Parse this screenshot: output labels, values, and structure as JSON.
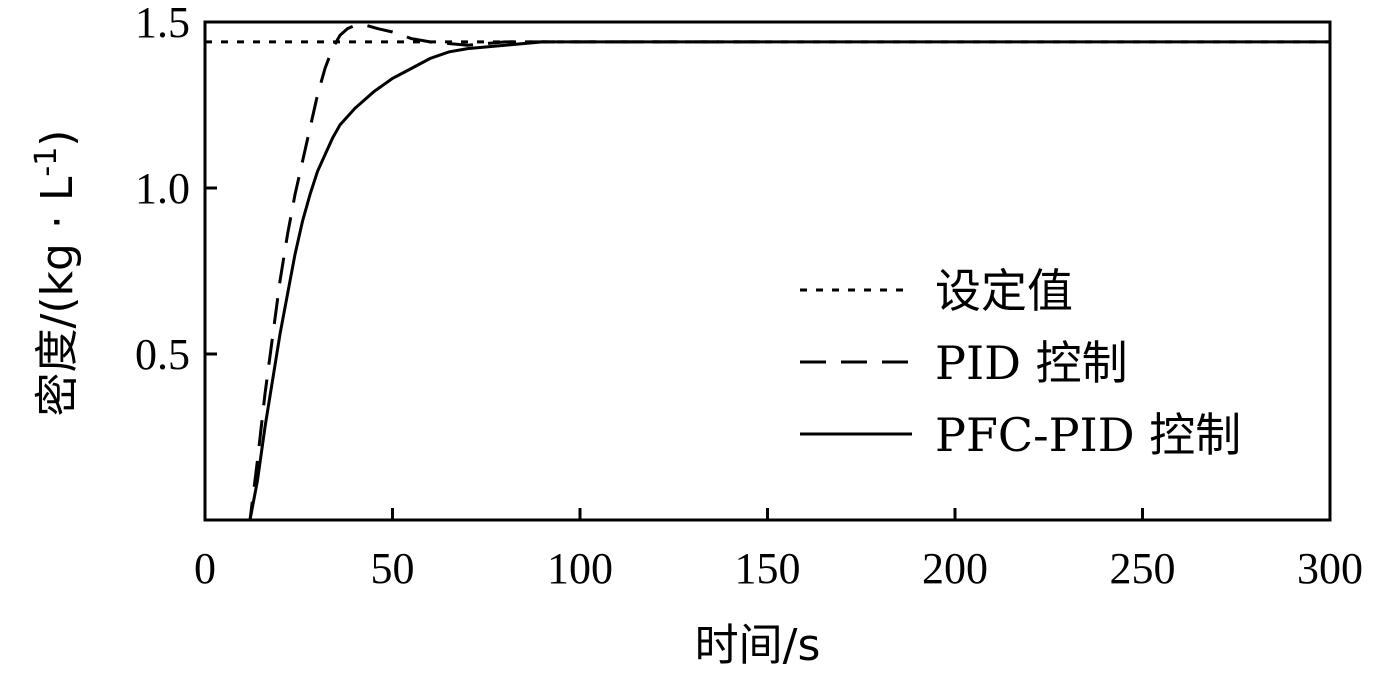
{
  "chart_data": {
    "type": "line",
    "title": "",
    "xlabel": "时间/s",
    "ylabel": "密度/(kg · L",
    "ylabel_superscript": "-1",
    "ylabel_suffix": ")",
    "xlim": [
      0,
      300
    ],
    "ylim": [
      0,
      1.5
    ],
    "x_ticks": [
      "0",
      "50",
      "100",
      "150",
      "200",
      "250",
      "300"
    ],
    "x_tick_values": [
      0,
      50,
      100,
      150,
      200,
      250,
      300
    ],
    "y_ticks": [
      "0.5",
      "1.0",
      "1.5"
    ],
    "y_tick_values": [
      0.5,
      1.0,
      1.5
    ],
    "grid": false,
    "legend_position": "right",
    "series": [
      {
        "name": "设定值",
        "style": "dotted",
        "x": [
          0,
          300
        ],
        "y": [
          1.44,
          1.44
        ]
      },
      {
        "name": "PID 控制",
        "style": "dashed",
        "x": [
          10,
          12,
          14,
          16,
          18,
          20,
          22,
          24,
          26,
          28,
          30,
          32,
          34,
          36,
          38,
          40,
          43,
          46,
          50,
          55,
          60,
          70,
          80,
          100,
          120,
          150
        ],
        "y": [
          0,
          0,
          0.18,
          0.38,
          0.55,
          0.72,
          0.86,
          0.98,
          1.08,
          1.18,
          1.28,
          1.36,
          1.42,
          1.46,
          1.48,
          1.49,
          1.49,
          1.48,
          1.47,
          1.45,
          1.44,
          1.43,
          1.44,
          1.44,
          1.44,
          1.44
        ]
      },
      {
        "name": "PFC-PID 控制",
        "style": "solid",
        "x": [
          10,
          12,
          14,
          16,
          18,
          20,
          22,
          24,
          26,
          28,
          30,
          32,
          34,
          36,
          40,
          45,
          50,
          55,
          60,
          65,
          70,
          80,
          90,
          100,
          150,
          300
        ],
        "y": [
          0,
          0,
          0.12,
          0.28,
          0.42,
          0.56,
          0.68,
          0.8,
          0.9,
          0.98,
          1.05,
          1.1,
          1.15,
          1.19,
          1.24,
          1.29,
          1.33,
          1.36,
          1.39,
          1.41,
          1.42,
          1.43,
          1.44,
          1.44,
          1.44,
          1.44
        ]
      }
    ]
  }
}
